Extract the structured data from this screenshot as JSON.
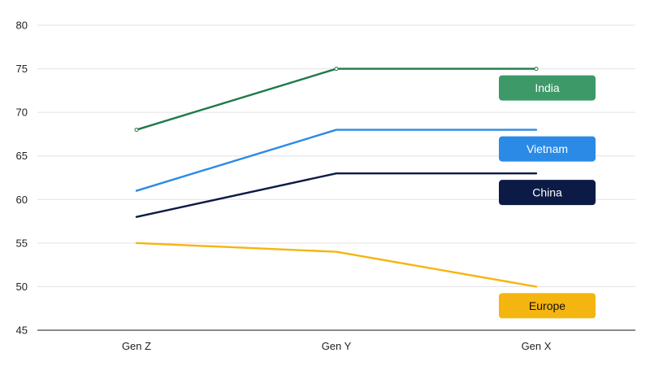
{
  "chart_data": {
    "type": "line",
    "title": "",
    "xlabel": "",
    "ylabel": "",
    "categories": [
      "Gen Z",
      "Gen Y",
      "Gen X"
    ],
    "ylim": [
      45,
      80
    ],
    "yticks": [
      45,
      50,
      55,
      60,
      65,
      70,
      75,
      80
    ],
    "grid": true,
    "series": [
      {
        "name": "India",
        "values": [
          68,
          75,
          75
        ],
        "color": "#1e7a48",
        "label_bg": "#3d9a68",
        "label_text": "#ffffff"
      },
      {
        "name": "Vietnam",
        "values": [
          61,
          68,
          68
        ],
        "color": "#2b8ae6",
        "label_bg": "#2b8ae6",
        "label_text": "#ffffff"
      },
      {
        "name": "China",
        "values": [
          58,
          63,
          63
        ],
        "color": "#0b1b45",
        "label_bg": "#0b1b45",
        "label_text": "#ffffff"
      },
      {
        "name": "Europe",
        "values": [
          55,
          54,
          50
        ],
        "color": "#f5b511",
        "label_bg": "#f5b511",
        "label_text": "#111111"
      }
    ]
  }
}
